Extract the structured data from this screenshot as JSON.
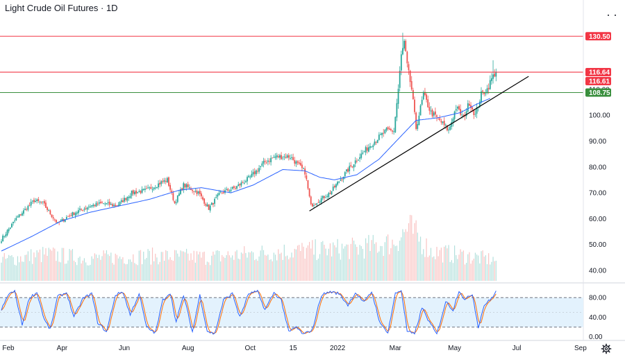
{
  "colors": {
    "up": "#26a69a",
    "down": "#ef5350",
    "ma": "#2962ff",
    "red_line": "#f23645",
    "green_line": "#388e3c",
    "trend": "#000000",
    "stoch_k": "#2962ff",
    "stoch_d": "#ff6d00",
    "stoch_band": "#e3f2fd",
    "grid_text": "#131722",
    "separator": "#d1d4dc"
  },
  "icons": [
    "settings-gear-icon",
    "dots-menu-icon"
  ],
  "chart_data": [
    {
      "type": "candlestick",
      "title": "Light Crude Oil Futures · 1D",
      "y_ticks": [
        "40.00",
        "50.00",
        "60.00",
        "70.00",
        "80.00",
        "90.00",
        "100.00",
        "110.00"
      ],
      "ylim": [
        36,
        137
      ],
      "x_ticks": [
        {
          "label": "Feb",
          "t": 0
        },
        {
          "label": "Apr",
          "t": 41
        },
        {
          "label": "Jun",
          "t": 83
        },
        {
          "label": "Aug",
          "t": 126
        },
        {
          "label": "Oct",
          "t": 168
        },
        {
          "label": "15",
          "t": 197
        },
        {
          "label": "2022",
          "t": 227
        },
        {
          "label": "Mar",
          "t": 266
        },
        {
          "label": "May",
          "t": 306
        },
        {
          "label": "Jul",
          "t": 348
        },
        {
          "label": "Sep",
          "t": 391
        }
      ],
      "price_lines": [
        {
          "value": 130.5,
          "label": "130.50",
          "color": "#f23645"
        },
        {
          "value": 116.64,
          "label": "116.64",
          "color": "#f23645"
        },
        {
          "value": 116.61,
          "label": "116.61",
          "color": "#f23645"
        },
        {
          "value": 108.75,
          "label": "108.75",
          "color": "#388e3c"
        }
      ],
      "trendline": {
        "start": {
          "t": 208,
          "price": 63
        },
        "end": {
          "t": 356,
          "price": 115
        }
      },
      "moving_average_keypoints": [
        [
          0,
          47.5
        ],
        [
          20,
          53
        ],
        [
          40,
          59
        ],
        [
          60,
          62.5
        ],
        [
          80,
          65
        ],
        [
          100,
          67.5
        ],
        [
          120,
          71
        ],
        [
          135,
          72
        ],
        [
          155,
          70
        ],
        [
          170,
          73
        ],
        [
          190,
          79
        ],
        [
          205,
          78.5
        ],
        [
          215,
          76
        ],
        [
          225,
          75
        ],
        [
          240,
          77
        ],
        [
          255,
          83
        ],
        [
          265,
          89
        ],
        [
          280,
          98
        ],
        [
          295,
          99
        ],
        [
          310,
          101
        ],
        [
          320,
          104
        ],
        [
          330,
          106.5
        ]
      ],
      "close_keypoints": [
        [
          0,
          52
        ],
        [
          10,
          60
        ],
        [
          22,
          67
        ],
        [
          28,
          66
        ],
        [
          38,
          58
        ],
        [
          45,
          61
        ],
        [
          52,
          63
        ],
        [
          60,
          65
        ],
        [
          68,
          66
        ],
        [
          78,
          65
        ],
        [
          88,
          70
        ],
        [
          98,
          71
        ],
        [
          108,
          74
        ],
        [
          112,
          75
        ],
        [
          117,
          66
        ],
        [
          123,
          73
        ],
        [
          133,
          70
        ],
        [
          140,
          64
        ],
        [
          148,
          70
        ],
        [
          158,
          72
        ],
        [
          168,
          76
        ],
        [
          178,
          82
        ],
        [
          185,
          84
        ],
        [
          195,
          84
        ],
        [
          205,
          78
        ],
        [
          209,
          65
        ],
        [
          214,
          67
        ],
        [
          222,
          70
        ],
        [
          230,
          76
        ],
        [
          240,
          83
        ],
        [
          250,
          89
        ],
        [
          260,
          94
        ],
        [
          265,
          94
        ],
        [
          268,
          110
        ],
        [
          270,
          123
        ],
        [
          272,
          128
        ],
        [
          274,
          119
        ],
        [
          277,
          110
        ],
        [
          280,
          95
        ],
        [
          285,
          108
        ],
        [
          290,
          101
        ],
        [
          296,
          98
        ],
        [
          302,
          94
        ],
        [
          307,
          103
        ],
        [
          312,
          99
        ],
        [
          316,
          105
        ],
        [
          320,
          100
        ],
        [
          324,
          108
        ],
        [
          328,
          110
        ],
        [
          331,
          114
        ],
        [
          333,
          116
        ],
        [
          334,
          116.61
        ]
      ],
      "volume_keypoints": [
        [
          0,
          0.35
        ],
        [
          30,
          0.45
        ],
        [
          60,
          0.38
        ],
        [
          100,
          0.42
        ],
        [
          140,
          0.4
        ],
        [
          180,
          0.48
        ],
        [
          210,
          0.52
        ],
        [
          240,
          0.55
        ],
        [
          265,
          0.65
        ],
        [
          275,
          0.9
        ],
        [
          290,
          0.5
        ],
        [
          320,
          0.4
        ],
        [
          334,
          0.35
        ]
      ]
    },
    {
      "type": "line",
      "name": "stochastic",
      "y_ticks": [
        "0.00",
        "40.00",
        "80.00"
      ],
      "ylim": [
        0,
        100
      ],
      "bands": [
        80,
        20
      ],
      "keypoints": [
        [
          0,
          55
        ],
        [
          5,
          88
        ],
        [
          9,
          92
        ],
        [
          14,
          25
        ],
        [
          19,
          80
        ],
        [
          24,
          90
        ],
        [
          29,
          35
        ],
        [
          33,
          15
        ],
        [
          38,
          82
        ],
        [
          44,
          90
        ],
        [
          49,
          40
        ],
        [
          55,
          78
        ],
        [
          61,
          88
        ],
        [
          65,
          30
        ],
        [
          71,
          10
        ],
        [
          77,
          85
        ],
        [
          82,
          92
        ],
        [
          87,
          45
        ],
        [
          93,
          88
        ],
        [
          98,
          20
        ],
        [
          104,
          8
        ],
        [
          109,
          75
        ],
        [
          114,
          90
        ],
        [
          118,
          30
        ],
        [
          123,
          85
        ],
        [
          129,
          10
        ],
        [
          134,
          85
        ],
        [
          139,
          12
        ],
        [
          144,
          6
        ],
        [
          150,
          75
        ],
        [
          156,
          88
        ],
        [
          161,
          40
        ],
        [
          167,
          88
        ],
        [
          173,
          92
        ],
        [
          178,
          55
        ],
        [
          184,
          90
        ],
        [
          189,
          75
        ],
        [
          194,
          10
        ],
        [
          199,
          20
        ],
        [
          204,
          5
        ],
        [
          210,
          15
        ],
        [
          216,
          85
        ],
        [
          222,
          92
        ],
        [
          228,
          88
        ],
        [
          234,
          65
        ],
        [
          239,
          90
        ],
        [
          245,
          70
        ],
        [
          250,
          92
        ],
        [
          256,
          25
        ],
        [
          261,
          10
        ],
        [
          266,
          88
        ],
        [
          270,
          95
        ],
        [
          274,
          12
        ],
        [
          279,
          5
        ],
        [
          284,
          60
        ],
        [
          289,
          30
        ],
        [
          294,
          5
        ],
        [
          300,
          72
        ],
        [
          305,
          55
        ],
        [
          309,
          95
        ],
        [
          313,
          75
        ],
        [
          318,
          88
        ],
        [
          322,
          20
        ],
        [
          326,
          65
        ],
        [
          330,
          75
        ],
        [
          334,
          92
        ]
      ]
    }
  ]
}
